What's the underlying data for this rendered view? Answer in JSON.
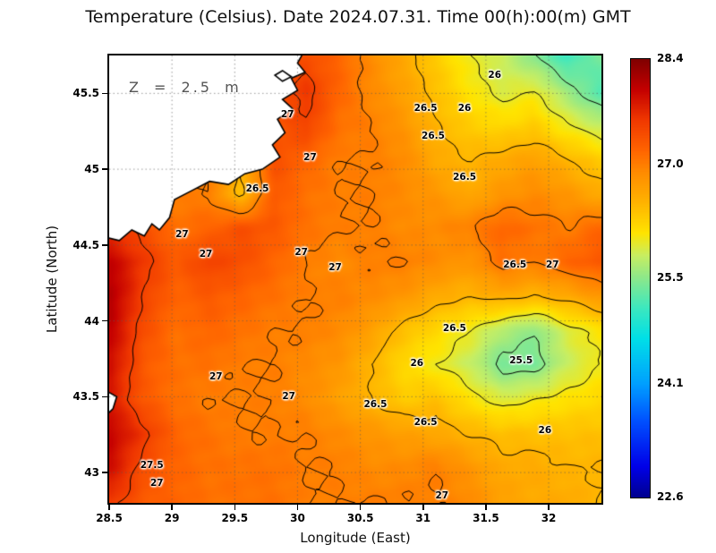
{
  "chart_data": {
    "type": "heatmap",
    "title": "Temperature (Celsius). Date 2024.07.31. Time 00(h):00(m) GMT",
    "xlabel": "Longitude (East)",
    "ylabel": "Latitude (North)",
    "annotation": "Z = 2.5 m",
    "x_range": [
      28.5,
      32.42
    ],
    "y_range": [
      42.8,
      45.75
    ],
    "x_ticks": [
      {
        "label": "28.5",
        "value": 28.5
      },
      {
        "label": "29",
        "value": 29
      },
      {
        "label": "29.5",
        "value": 29.5
      },
      {
        "label": "30",
        "value": 30
      },
      {
        "label": "30.5",
        "value": 30.5
      },
      {
        "label": "31",
        "value": 31
      },
      {
        "label": "31.5",
        "value": 31.5
      },
      {
        "label": "32",
        "value": 32
      }
    ],
    "y_ticks": [
      {
        "label": "45.5",
        "value": 45.5
      },
      {
        "label": "45",
        "value": 45
      },
      {
        "label": "44.5",
        "value": 44.5
      },
      {
        "label": "44",
        "value": 44
      },
      {
        "label": "43.5",
        "value": 43.5
      },
      {
        "label": "43",
        "value": 43
      }
    ],
    "colorbar": {
      "min": 22.6,
      "max": 28.4,
      "tick_labels": [
        {
          "label": "28.4",
          "value": 28.4
        },
        {
          "label": "27.0",
          "value": 27.0
        },
        {
          "label": "25.5",
          "value": 25.5
        },
        {
          "label": "24.1",
          "value": 24.1
        },
        {
          "label": "22.6",
          "value": 22.6
        }
      ]
    },
    "colormap": [
      [
        22.6,
        "#000090"
      ],
      [
        23.0,
        "#0000E8"
      ],
      [
        23.6,
        "#0050FF"
      ],
      [
        24.1,
        "#00A0FF"
      ],
      [
        24.7,
        "#00E0E8"
      ],
      [
        25.1,
        "#3CE8C0"
      ],
      [
        25.5,
        "#8CE88C"
      ],
      [
        25.8,
        "#C8EE62"
      ],
      [
        26.1,
        "#FFE400"
      ],
      [
        26.5,
        "#FFB400"
      ],
      [
        26.9,
        "#FF8C00"
      ],
      [
        27.2,
        "#FF6400"
      ],
      [
        27.6,
        "#F03800"
      ],
      [
        28.0,
        "#C40000"
      ],
      [
        28.4,
        "#800000"
      ]
    ],
    "contour_levels": [
      25.5,
      26,
      26.5,
      27,
      27.5
    ],
    "contour_labels": [
      {
        "t": "26",
        "lon": 31.57,
        "lat": 45.62
      },
      {
        "t": "26.5",
        "lon": 31.02,
        "lat": 45.4
      },
      {
        "t": "26",
        "lon": 31.33,
        "lat": 45.4
      },
      {
        "t": "26.5",
        "lon": 31.08,
        "lat": 45.22
      },
      {
        "t": "27",
        "lon": 29.92,
        "lat": 45.36
      },
      {
        "t": "27",
        "lon": 30.1,
        "lat": 45.08
      },
      {
        "t": "26.5",
        "lon": 31.33,
        "lat": 44.95
      },
      {
        "t": "26.5",
        "lon": 29.68,
        "lat": 44.87
      },
      {
        "t": "27",
        "lon": 29.08,
        "lat": 44.57
      },
      {
        "t": "27",
        "lon": 29.27,
        "lat": 44.44
      },
      {
        "t": "27",
        "lon": 30.03,
        "lat": 44.45
      },
      {
        "t": "27",
        "lon": 30.3,
        "lat": 44.35
      },
      {
        "t": "26.5",
        "lon": 31.73,
        "lat": 44.37
      },
      {
        "t": "27",
        "lon": 32.03,
        "lat": 44.37
      },
      {
        "t": "26.5",
        "lon": 31.25,
        "lat": 43.95
      },
      {
        "t": "26",
        "lon": 30.95,
        "lat": 43.72
      },
      {
        "t": "25.5",
        "lon": 31.78,
        "lat": 43.74
      },
      {
        "t": "27",
        "lon": 29.35,
        "lat": 43.63
      },
      {
        "t": "27",
        "lon": 29.93,
        "lat": 43.5
      },
      {
        "t": "26.5",
        "lon": 30.62,
        "lat": 43.45
      },
      {
        "t": "26.5",
        "lon": 31.02,
        "lat": 43.33
      },
      {
        "t": "26",
        "lon": 31.97,
        "lat": 43.28
      },
      {
        "t": "27.5",
        "lon": 28.84,
        "lat": 43.05
      },
      {
        "t": "27",
        "lon": 28.88,
        "lat": 42.93
      },
      {
        "t": "27",
        "lon": 31.15,
        "lat": 42.85
      }
    ],
    "grid_lon": [
      28.5,
      28.76,
      29.02,
      29.28,
      29.54,
      29.8,
      30.06,
      30.32,
      30.58,
      30.84,
      31.1,
      31.36,
      31.62,
      31.88,
      32.14,
      32.4
    ],
    "grid_lat": [
      45.75,
      45.52,
      45.3,
      45.07,
      44.84,
      44.62,
      44.39,
      44.16,
      43.94,
      43.71,
      43.48,
      43.25,
      43.03,
      42.8
    ],
    "values": [
      [
        27.2,
        27.2,
        27.2,
        27.2,
        27.2,
        27.3,
        27.4,
        27.2,
        26.9,
        26.6,
        26.3,
        26.0,
        25.8,
        25.5,
        25.1,
        25.4
      ],
      [
        27.2,
        27.2,
        27.2,
        27.3,
        27.3,
        27.4,
        27.6,
        27.2,
        26.9,
        26.7,
        26.4,
        26.1,
        25.9,
        26.0,
        25.6,
        25.2
      ],
      [
        27.2,
        27.2,
        27.3,
        27.3,
        27.2,
        27.3,
        27.5,
        27.1,
        27.0,
        26.8,
        26.5,
        26.3,
        26.2,
        26.3,
        26.0,
        25.8
      ],
      [
        27.0,
        27.0,
        27.0,
        27.0,
        26.5,
        27.4,
        27.2,
        27.0,
        27.0,
        26.9,
        26.6,
        26.5,
        26.6,
        26.7,
        26.5,
        26.3
      ],
      [
        27.0,
        27.0,
        27.0,
        27.0,
        26.4,
        27.3,
        27.1,
        27.0,
        27.0,
        26.9,
        26.8,
        26.6,
        26.8,
        26.9,
        26.8,
        26.6
      ],
      [
        27.6,
        27.4,
        27.1,
        27.2,
        27.4,
        27.3,
        27.1,
        27.0,
        27.0,
        26.9,
        26.9,
        27.0,
        27.2,
        27.1,
        27.0,
        27.2
      ],
      [
        28.0,
        27.6,
        27.3,
        27.5,
        27.4,
        27.2,
        27.0,
        26.9,
        27.0,
        27.0,
        26.9,
        26.8,
        27.1,
        27.0,
        27.2,
        27.3
      ],
      [
        28.1,
        27.5,
        27.2,
        27.3,
        27.2,
        27.1,
        27.0,
        27.0,
        26.9,
        26.8,
        26.6,
        26.5,
        26.6,
        26.5,
        26.6,
        26.8
      ],
      [
        28.0,
        27.4,
        27.1,
        27.2,
        27.1,
        27.0,
        27.0,
        26.9,
        26.7,
        26.4,
        26.2,
        26.0,
        25.7,
        25.5,
        25.9,
        26.1
      ],
      [
        27.9,
        27.3,
        27.1,
        27.1,
        27.0,
        27.0,
        26.9,
        26.8,
        26.5,
        26.2,
        26.0,
        25.8,
        25.4,
        25.4,
        25.8,
        26.0
      ],
      [
        27.8,
        27.3,
        27.1,
        27.0,
        27.0,
        27.0,
        26.9,
        26.7,
        26.5,
        26.3,
        26.4,
        26.1,
        25.9,
        26.0,
        26.1,
        26.2
      ],
      [
        28.0,
        27.6,
        27.2,
        27.1,
        27.0,
        27.0,
        27.0,
        26.9,
        26.8,
        26.7,
        26.6,
        26.5,
        26.4,
        26.4,
        26.4,
        26.4
      ],
      [
        27.9,
        27.4,
        27.2,
        27.1,
        27.1,
        27.1,
        27.0,
        27.0,
        26.9,
        26.9,
        27.0,
        26.8,
        26.6,
        26.6,
        26.5,
        26.5
      ],
      [
        27.6,
        27.3,
        27.2,
        27.1,
        27.1,
        27.1,
        27.0,
        27.0,
        27.0,
        27.0,
        27.0,
        26.9,
        26.7,
        26.6,
        26.6,
        26.5
      ]
    ],
    "land_polygons": [
      [
        [
          30.08,
          45.82
        ],
        [
          30.0,
          45.7
        ],
        [
          30.06,
          45.64
        ],
        [
          29.95,
          45.6
        ],
        [
          30.0,
          45.52
        ],
        [
          29.88,
          45.46
        ],
        [
          29.96,
          45.4
        ],
        [
          29.84,
          45.33
        ],
        [
          29.9,
          45.24
        ],
        [
          29.8,
          45.16
        ],
        [
          29.86,
          45.08
        ],
        [
          29.72,
          45.0
        ],
        [
          29.58,
          44.97
        ],
        [
          29.45,
          44.9
        ],
        [
          29.3,
          44.92
        ],
        [
          29.16,
          44.86
        ],
        [
          29.02,
          44.8
        ],
        [
          28.98,
          44.68
        ],
        [
          28.9,
          44.6
        ],
        [
          28.84,
          44.64
        ],
        [
          28.78,
          44.56
        ],
        [
          28.68,
          44.6
        ],
        [
          28.58,
          44.53
        ],
        [
          28.43,
          44.56
        ],
        [
          28.43,
          45.82
        ]
      ],
      [
        [
          29.82,
          45.62
        ],
        [
          29.88,
          45.65
        ],
        [
          29.95,
          45.61
        ],
        [
          29.88,
          45.58
        ]
      ],
      [
        [
          28.43,
          43.56
        ],
        [
          28.56,
          43.5
        ],
        [
          28.53,
          43.42
        ],
        [
          28.43,
          43.34
        ]
      ]
    ]
  }
}
